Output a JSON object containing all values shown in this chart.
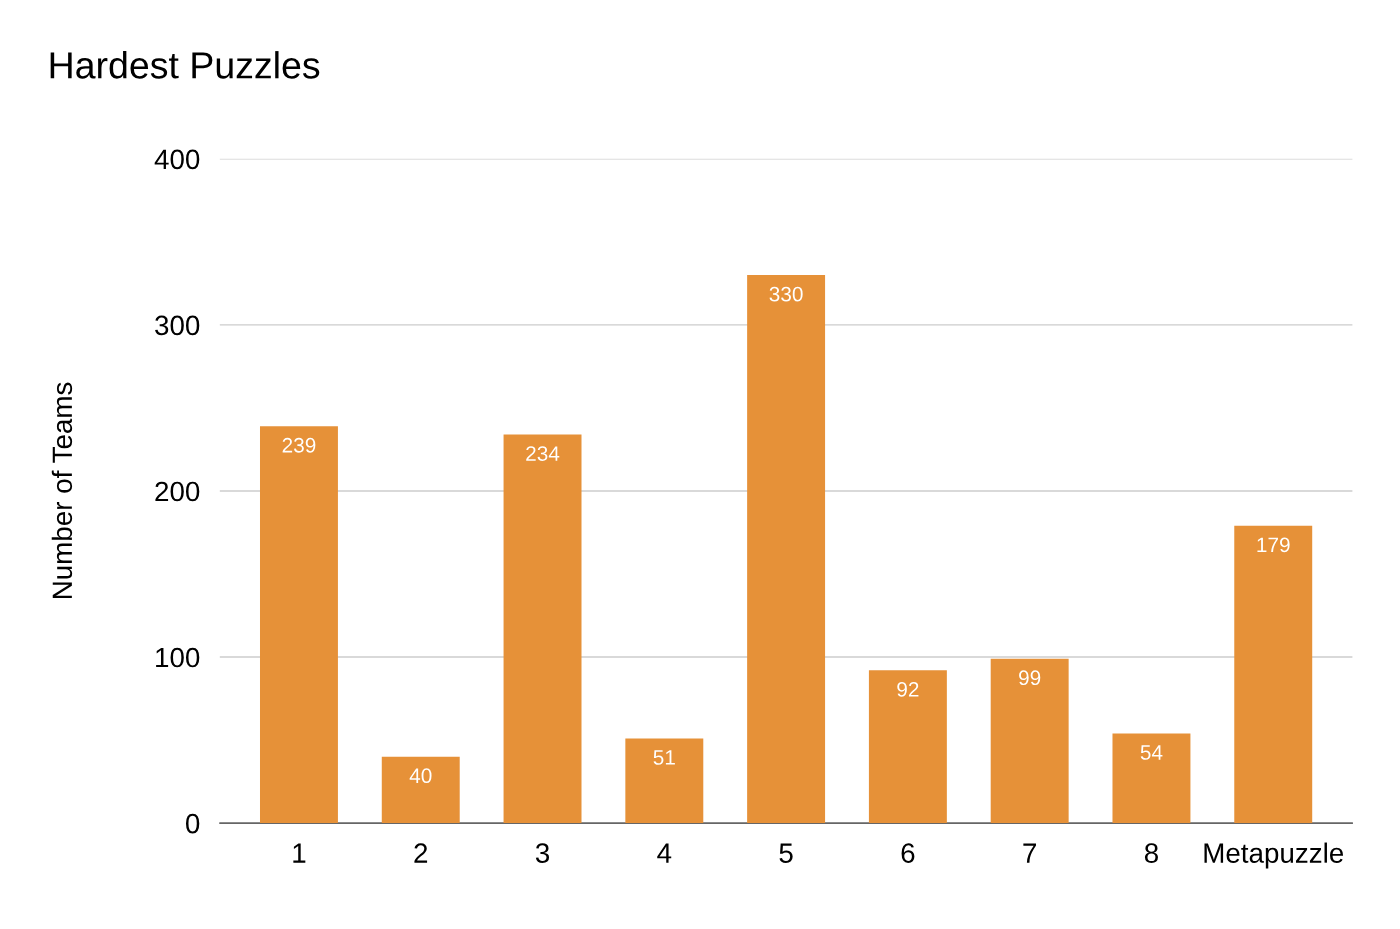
{
  "chart_data": {
    "type": "bar",
    "title": "Hardest Puzzles",
    "ylabel": "Number of Teams",
    "categories": [
      "1",
      "2",
      "3",
      "4",
      "5",
      "6",
      "7",
      "8",
      "Metapuzzle"
    ],
    "values": [
      239,
      40,
      234,
      51,
      330,
      92,
      99,
      54,
      179
    ],
    "color": "#e69138",
    "ylim": [
      0,
      400
    ],
    "yticks": [
      0,
      100,
      200,
      300,
      400
    ],
    "grid": "y",
    "data_labels": true,
    "legend": false
  }
}
